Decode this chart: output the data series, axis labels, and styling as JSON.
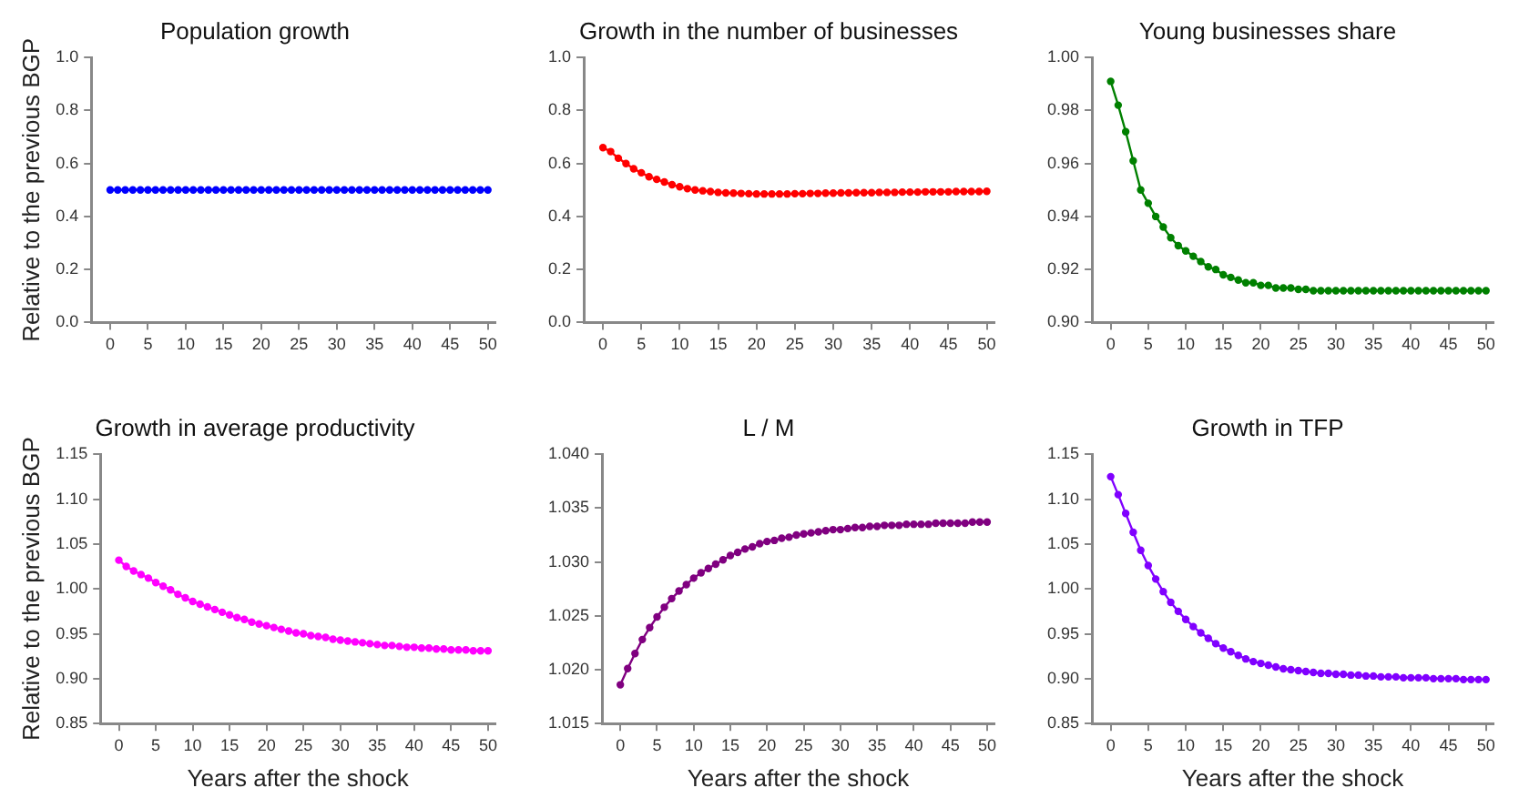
{
  "chart_data": [
    {
      "type": "line",
      "title": "Population growth",
      "ylabel": "Relative to the previous BGP",
      "marker": "circle",
      "line_style": "solid",
      "grid": false,
      "legend": false,
      "x": [
        0,
        1,
        2,
        3,
        4,
        5,
        6,
        7,
        8,
        9,
        10,
        11,
        12,
        13,
        14,
        15,
        16,
        17,
        18,
        19,
        20,
        21,
        22,
        23,
        24,
        25,
        26,
        27,
        28,
        29,
        30,
        31,
        32,
        33,
        34,
        35,
        36,
        37,
        38,
        39,
        40,
        41,
        42,
        43,
        44,
        45,
        46,
        47,
        48,
        49,
        50
      ],
      "xlim": [
        -2.5,
        51
      ],
      "xticks": [
        0,
        5,
        10,
        15,
        20,
        25,
        30,
        35,
        40,
        45,
        50
      ],
      "ylim": [
        0,
        1
      ],
      "yticks": [
        {
          "value": 0,
          "label": "0.0"
        },
        {
          "value": 0.2,
          "label": "0.2"
        },
        {
          "value": 0.4,
          "label": "0.4"
        },
        {
          "value": 0.6,
          "label": "0.6"
        },
        {
          "value": 0.8,
          "label": "0.8"
        },
        {
          "value": 1,
          "label": "1.0"
        }
      ],
      "series": [
        {
          "color": "#0000ff",
          "values": [
            0.5,
            0.5,
            0.5,
            0.5,
            0.5,
            0.5,
            0.5,
            0.5,
            0.5,
            0.5,
            0.5,
            0.5,
            0.5,
            0.5,
            0.5,
            0.5,
            0.5,
            0.5,
            0.5,
            0.5,
            0.5,
            0.5,
            0.5,
            0.5,
            0.5,
            0.5,
            0.5,
            0.5,
            0.5,
            0.5,
            0.5,
            0.5,
            0.5,
            0.5,
            0.5,
            0.5,
            0.5,
            0.5,
            0.5,
            0.5,
            0.5,
            0.5,
            0.5,
            0.5,
            0.5,
            0.5,
            0.5,
            0.5,
            0.5,
            0.5,
            0.5
          ]
        }
      ]
    },
    {
      "type": "line",
      "title": "Growth in the number of businesses",
      "marker": "circle",
      "line_style": "solid",
      "grid": false,
      "legend": false,
      "x": [
        0,
        1,
        2,
        3,
        4,
        5,
        6,
        7,
        8,
        9,
        10,
        11,
        12,
        13,
        14,
        15,
        16,
        17,
        18,
        19,
        20,
        21,
        22,
        23,
        24,
        25,
        26,
        27,
        28,
        29,
        30,
        31,
        32,
        33,
        34,
        35,
        36,
        37,
        38,
        39,
        40,
        41,
        42,
        43,
        44,
        45,
        46,
        47,
        48,
        49,
        50
      ],
      "xlim": [
        -2.5,
        51
      ],
      "xticks": [
        0,
        5,
        10,
        15,
        20,
        25,
        30,
        35,
        40,
        45,
        50
      ],
      "ylim": [
        0,
        1
      ],
      "yticks": [
        {
          "value": 0,
          "label": "0.0"
        },
        {
          "value": 0.2,
          "label": "0.2"
        },
        {
          "value": 0.4,
          "label": "0.4"
        },
        {
          "value": 0.6,
          "label": "0.6"
        },
        {
          "value": 0.8,
          "label": "0.8"
        },
        {
          "value": 1,
          "label": "1.0"
        }
      ],
      "series": [
        {
          "color": "#ff0000",
          "values": [
            0.66,
            0.645,
            0.62,
            0.6,
            0.58,
            0.565,
            0.55,
            0.54,
            0.53,
            0.52,
            0.512,
            0.505,
            0.5,
            0.497,
            0.494,
            0.491,
            0.489,
            0.488,
            0.487,
            0.486,
            0.485,
            0.485,
            0.485,
            0.485,
            0.485,
            0.486,
            0.486,
            0.487,
            0.487,
            0.488,
            0.488,
            0.489,
            0.489,
            0.49,
            0.49,
            0.49,
            0.491,
            0.491,
            0.491,
            0.492,
            0.492,
            0.492,
            0.493,
            0.493,
            0.493,
            0.493,
            0.494,
            0.494,
            0.494,
            0.494,
            0.495
          ]
        }
      ]
    },
    {
      "type": "line",
      "title": "Young businesses share",
      "marker": "circle",
      "line_style": "solid",
      "grid": false,
      "legend": false,
      "x": [
        0,
        1,
        2,
        3,
        4,
        5,
        6,
        7,
        8,
        9,
        10,
        11,
        12,
        13,
        14,
        15,
        16,
        17,
        18,
        19,
        20,
        21,
        22,
        23,
        24,
        25,
        26,
        27,
        28,
        29,
        30,
        31,
        32,
        33,
        34,
        35,
        36,
        37,
        38,
        39,
        40,
        41,
        42,
        43,
        44,
        45,
        46,
        47,
        48,
        49,
        50
      ],
      "xlim": [
        -2.5,
        51
      ],
      "xticks": [
        0,
        5,
        10,
        15,
        20,
        25,
        30,
        35,
        40,
        45,
        50
      ],
      "ylim": [
        0.9,
        1
      ],
      "yticks": [
        {
          "value": 0.9,
          "label": "0.90"
        },
        {
          "value": 0.92,
          "label": "0.92"
        },
        {
          "value": 0.94,
          "label": "0.94"
        },
        {
          "value": 0.96,
          "label": "0.96"
        },
        {
          "value": 0.98,
          "label": "0.98"
        },
        {
          "value": 1,
          "label": "1.00"
        }
      ],
      "series": [
        {
          "color": "#008000",
          "values": [
            0.991,
            0.982,
            0.972,
            0.961,
            0.95,
            0.945,
            0.94,
            0.936,
            0.932,
            0.929,
            0.927,
            0.925,
            0.923,
            0.921,
            0.92,
            0.918,
            0.917,
            0.916,
            0.915,
            0.915,
            0.914,
            0.914,
            0.913,
            0.913,
            0.913,
            0.9125,
            0.9125,
            0.912,
            0.912,
            0.912,
            0.912,
            0.912,
            0.912,
            0.912,
            0.912,
            0.912,
            0.912,
            0.912,
            0.912,
            0.912,
            0.912,
            0.912,
            0.912,
            0.912,
            0.912,
            0.912,
            0.912,
            0.912,
            0.912,
            0.912,
            0.912
          ]
        }
      ]
    },
    {
      "type": "line",
      "title": "Growth in average productivity",
      "xlabel": "Years after the shock",
      "ylabel": "Relative to the previous BGP",
      "marker": "circle",
      "line_style": "solid",
      "grid": false,
      "legend": false,
      "x": [
        0,
        1,
        2,
        3,
        4,
        5,
        6,
        7,
        8,
        9,
        10,
        11,
        12,
        13,
        14,
        15,
        16,
        17,
        18,
        19,
        20,
        21,
        22,
        23,
        24,
        25,
        26,
        27,
        28,
        29,
        30,
        31,
        32,
        33,
        34,
        35,
        36,
        37,
        38,
        39,
        40,
        41,
        42,
        43,
        44,
        45,
        46,
        47,
        48,
        49,
        50
      ],
      "xlim": [
        -2.5,
        51
      ],
      "xticks": [
        0,
        5,
        10,
        15,
        20,
        25,
        30,
        35,
        40,
        45,
        50
      ],
      "ylim": [
        0.85,
        1.15
      ],
      "yticks": [
        {
          "value": 0.85,
          "label": "0.85"
        },
        {
          "value": 0.9,
          "label": "0.90"
        },
        {
          "value": 0.95,
          "label": "0.95"
        },
        {
          "value": 1,
          "label": "1.00"
        },
        {
          "value": 1.05,
          "label": "1.05"
        },
        {
          "value": 1.1,
          "label": "1.10"
        },
        {
          "value": 1.15,
          "label": "1.15"
        }
      ],
      "series": [
        {
          "color": "#ff00ff",
          "values": [
            1.032,
            1.025,
            1.02,
            1.016,
            1.012,
            1.007,
            1.003,
            0.999,
            0.994,
            0.99,
            0.986,
            0.983,
            0.98,
            0.977,
            0.974,
            0.971,
            0.968,
            0.966,
            0.963,
            0.961,
            0.959,
            0.957,
            0.955,
            0.953,
            0.951,
            0.95,
            0.948,
            0.947,
            0.946,
            0.944,
            0.943,
            0.942,
            0.941,
            0.94,
            0.939,
            0.938,
            0.937,
            0.937,
            0.936,
            0.935,
            0.935,
            0.934,
            0.934,
            0.933,
            0.933,
            0.932,
            0.932,
            0.932,
            0.931,
            0.931,
            0.931
          ]
        }
      ]
    },
    {
      "type": "line",
      "title": "L / M",
      "xlabel": "Years after the shock",
      "marker": "circle",
      "line_style": "solid",
      "grid": false,
      "legend": false,
      "x": [
        0,
        1,
        2,
        3,
        4,
        5,
        6,
        7,
        8,
        9,
        10,
        11,
        12,
        13,
        14,
        15,
        16,
        17,
        18,
        19,
        20,
        21,
        22,
        23,
        24,
        25,
        26,
        27,
        28,
        29,
        30,
        31,
        32,
        33,
        34,
        35,
        36,
        37,
        38,
        39,
        40,
        41,
        42,
        43,
        44,
        45,
        46,
        47,
        48,
        49,
        50
      ],
      "xlim": [
        -2.5,
        51
      ],
      "xticks": [
        0,
        5,
        10,
        15,
        20,
        25,
        30,
        35,
        40,
        45,
        50
      ],
      "ylim": [
        1.015,
        1.04
      ],
      "yticks": [
        {
          "value": 1.015,
          "label": "1.015"
        },
        {
          "value": 1.02,
          "label": "1.020"
        },
        {
          "value": 1.025,
          "label": "1.025"
        },
        {
          "value": 1.03,
          "label": "1.030"
        },
        {
          "value": 1.035,
          "label": "1.035"
        },
        {
          "value": 1.04,
          "label": "1.040"
        }
      ],
      "series": [
        {
          "color": "#800080",
          "values": [
            1.0186,
            1.0201,
            1.0215,
            1.0228,
            1.0239,
            1.0249,
            1.0258,
            1.0266,
            1.0273,
            1.0279,
            1.0285,
            1.029,
            1.0294,
            1.0298,
            1.0302,
            1.0306,
            1.0309,
            1.0312,
            1.0314,
            1.0317,
            1.0319,
            1.032,
            1.0322,
            1.0323,
            1.0325,
            1.0326,
            1.0327,
            1.0328,
            1.0329,
            1.033,
            1.033,
            1.0331,
            1.0332,
            1.0332,
            1.0333,
            1.0333,
            1.0334,
            1.0334,
            1.0334,
            1.0335,
            1.0335,
            1.0335,
            1.0335,
            1.0336,
            1.0336,
            1.0336,
            1.0336,
            1.0336,
            1.0337,
            1.0337,
            1.0337
          ]
        }
      ]
    },
    {
      "type": "line",
      "title": "Growth in TFP",
      "xlabel": "Years after the shock",
      "marker": "circle",
      "line_style": "solid",
      "grid": false,
      "legend": false,
      "x": [
        0,
        1,
        2,
        3,
        4,
        5,
        6,
        7,
        8,
        9,
        10,
        11,
        12,
        13,
        14,
        15,
        16,
        17,
        18,
        19,
        20,
        21,
        22,
        23,
        24,
        25,
        26,
        27,
        28,
        29,
        30,
        31,
        32,
        33,
        34,
        35,
        36,
        37,
        38,
        39,
        40,
        41,
        42,
        43,
        44,
        45,
        46,
        47,
        48,
        49,
        50
      ],
      "xlim": [
        -2.5,
        51
      ],
      "xticks": [
        0,
        5,
        10,
        15,
        20,
        25,
        30,
        35,
        40,
        45,
        50
      ],
      "ylim": [
        0.85,
        1.15
      ],
      "yticks": [
        {
          "value": 0.85,
          "label": "0.85"
        },
        {
          "value": 0.9,
          "label": "0.90"
        },
        {
          "value": 0.95,
          "label": "0.95"
        },
        {
          "value": 1,
          "label": "1.00"
        },
        {
          "value": 1.05,
          "label": "1.05"
        },
        {
          "value": 1.1,
          "label": "1.10"
        },
        {
          "value": 1.15,
          "label": "1.15"
        }
      ],
      "series": [
        {
          "color": "#8000ff",
          "values": [
            1.125,
            1.105,
            1.084,
            1.063,
            1.043,
            1.026,
            1.011,
            0.997,
            0.985,
            0.975,
            0.966,
            0.958,
            0.951,
            0.945,
            0.939,
            0.934,
            0.93,
            0.926,
            0.922,
            0.919,
            0.917,
            0.915,
            0.913,
            0.911,
            0.91,
            0.909,
            0.908,
            0.907,
            0.906,
            0.906,
            0.905,
            0.905,
            0.904,
            0.904,
            0.903,
            0.903,
            0.902,
            0.902,
            0.902,
            0.901,
            0.901,
            0.901,
            0.901,
            0.9,
            0.9,
            0.9,
            0.9,
            0.899,
            0.899,
            0.899,
            0.899
          ]
        }
      ]
    }
  ]
}
